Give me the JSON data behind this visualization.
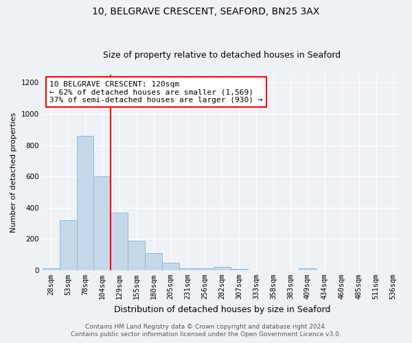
{
  "title": "10, BELGRAVE CRESCENT, SEAFORD, BN25 3AX",
  "subtitle": "Size of property relative to detached houses in Seaford",
  "xlabel": "Distribution of detached houses by size in Seaford",
  "ylabel": "Number of detached properties",
  "bin_labels": [
    "28sqm",
    "53sqm",
    "78sqm",
    "104sqm",
    "129sqm",
    "155sqm",
    "180sqm",
    "205sqm",
    "231sqm",
    "256sqm",
    "282sqm",
    "307sqm",
    "333sqm",
    "358sqm",
    "383sqm",
    "409sqm",
    "434sqm",
    "460sqm",
    "485sqm",
    "511sqm",
    "536sqm"
  ],
  "bin_values": [
    13,
    320,
    860,
    600,
    370,
    190,
    107,
    47,
    13,
    13,
    20,
    7,
    0,
    0,
    0,
    13,
    0,
    0,
    0,
    0,
    0
  ],
  "bar_color": "#c5d8ea",
  "bar_edge_color": "#8ab4cc",
  "vline_color": "red",
  "vline_pos": 3.5,
  "ylim": [
    0,
    1250
  ],
  "yticks": [
    0,
    200,
    400,
    600,
    800,
    1000,
    1200
  ],
  "annotation_line1": "10 BELGRAVE CRESCENT: 120sqm",
  "annotation_line2": "← 62% of detached houses are smaller (1,569)",
  "annotation_line3": "37% of semi-detached houses are larger (930) →",
  "annotation_box_color": "white",
  "annotation_box_edge_color": "red",
  "footnote1": "Contains HM Land Registry data © Crown copyright and database right 2024.",
  "footnote2": "Contains public sector information licensed under the Open Government Licence v3.0.",
  "background_color": "#eef2f7",
  "grid_color": "white",
  "title_fontsize": 10,
  "subtitle_fontsize": 9,
  "xlabel_fontsize": 9,
  "ylabel_fontsize": 8,
  "tick_fontsize": 7.5,
  "annotation_fontsize": 8,
  "footnote_fontsize": 6.5
}
